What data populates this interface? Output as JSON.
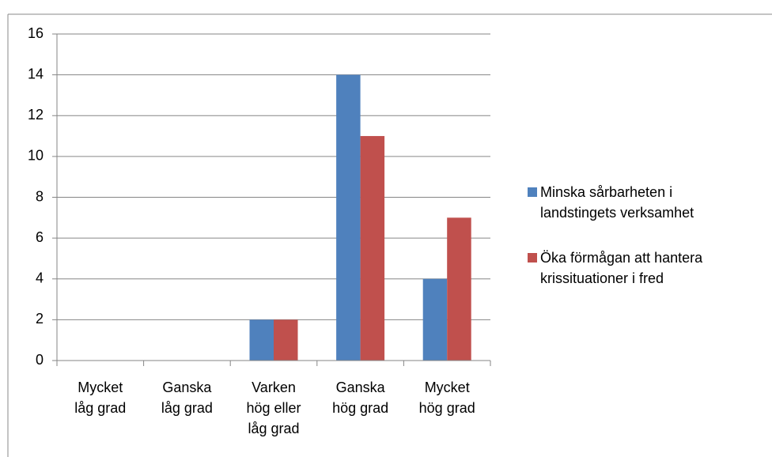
{
  "chart_data": {
    "type": "bar",
    "categories": [
      [
        "Mycket",
        "låg grad"
      ],
      [
        "Ganska",
        "låg grad"
      ],
      [
        "Varken",
        "hög eller",
        "låg grad"
      ],
      [
        "Ganska",
        "hög grad"
      ],
      [
        "Mycket",
        "hög grad"
      ]
    ],
    "series": [
      {
        "name": "Minska sårbarheten i landstingets verksamhet",
        "color": "#4f81bd",
        "values": [
          0,
          0,
          2,
          14,
          4
        ]
      },
      {
        "name": "Öka förmågan att hantera krissituationer i fred",
        "color": "#c0504d",
        "values": [
          0,
          0,
          2,
          11,
          7
        ]
      }
    ],
    "ylim": [
      0,
      16
    ],
    "yticks": [
      0,
      2,
      4,
      6,
      8,
      10,
      12,
      14,
      16
    ],
    "grid": true,
    "legend": "right"
  }
}
